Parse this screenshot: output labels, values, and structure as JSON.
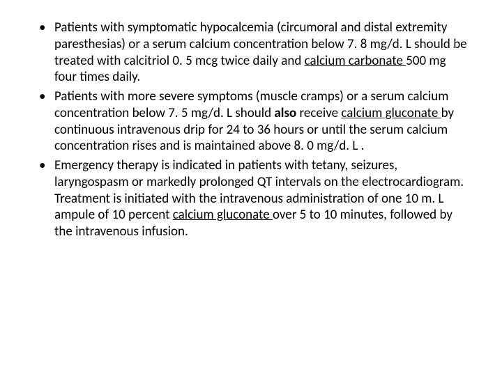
{
  "slide": {
    "bullets": [
      {
        "segments": [
          {
            "text": "Patients with symptomatic hypocalcemia (circumoral and distal extremity paresthesias) or a serum calcium concentration below 7. 8 mg/d. L should be treated with calcitriol 0. 5 mcg twice daily and "
          },
          {
            "text": "calcium carbonate ",
            "underline": true
          },
          {
            "text": "500 mg four times daily."
          }
        ]
      },
      {
        "segments": [
          {
            "text": "Patients with more severe symptoms (muscle cramps) or a serum calcium concentration below 7. 5 mg/d. L should "
          },
          {
            "text": "also",
            "bold": true
          },
          {
            "text": " receive "
          },
          {
            "text": "calcium gluconate ",
            "underline": true
          },
          {
            "text": "by continuous intravenous drip for 24 to 36 hours or until the serum calcium concentration rises and is maintained above 8. 0 mg/d. L ."
          }
        ]
      },
      {
        "segments": [
          {
            "text": "Emergency therapy is indicated in patients with tetany, seizures, laryngospasm or markedly prolonged QT intervals on the electrocardiogram. Treatment is initiated with the intravenous administration of one 10 m. L ampule of 10 percent "
          },
          {
            "text": "calcium gluconate ",
            "underline": true
          },
          {
            "text": "over 5 to 10 minutes, followed by the intravenous infusion."
          }
        ]
      }
    ]
  },
  "style": {
    "background_color": "#ffffff",
    "text_color": "#000000",
    "font_family": "Calibri",
    "font_size_pt": 19,
    "line_height": 1.25,
    "bullet_glyph": "•"
  }
}
